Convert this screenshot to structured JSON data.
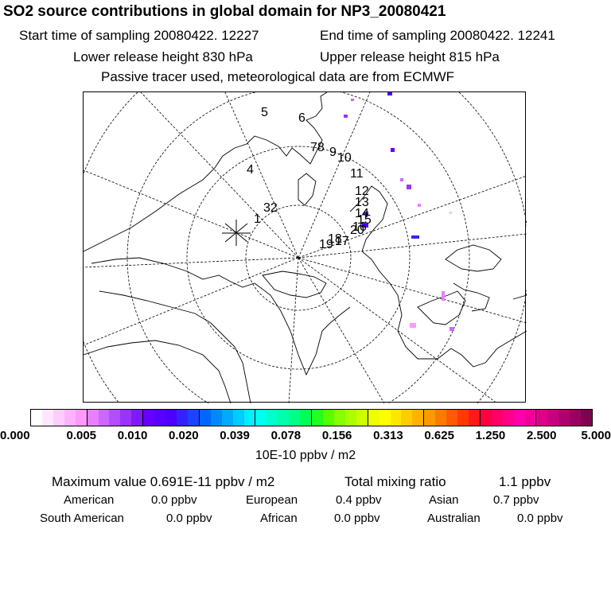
{
  "header": {
    "title": "SO2 source contributions in global domain for NP3_20080421",
    "start_time": "Start time of sampling 20080422. 12227",
    "end_time": "End time of sampling 20080422. 12241",
    "lower_height": "Lower release height  830 hPa",
    "upper_height": "Upper release height  815 hPa",
    "note": "Passive tracer used, meteorological data are from ECMWF"
  },
  "map": {
    "trajectory_labels": [
      "1",
      "32",
      "4",
      "5",
      "6",
      "78",
      "9",
      "10",
      "11",
      "12",
      "13",
      "14",
      "15",
      "16",
      "17",
      "18",
      "19",
      "20"
    ]
  },
  "colorbar": {
    "colors": [
      "#ffffff",
      "#ffe6ff",
      "#ffccff",
      "#ffb3ff",
      "#ff99ff",
      "#e680ff",
      "#cc66ff",
      "#b34dff",
      "#9933ff",
      "#7f1aff",
      "#6600ff",
      "#5a00ff",
      "#4d00ff",
      "#3322ff",
      "#1a44ff",
      "#0066ff",
      "#0088ff",
      "#00aaff",
      "#00ccff",
      "#00eeff",
      "#00ffee",
      "#00ffcc",
      "#00ffaa",
      "#00ff88",
      "#00ff55",
      "#22ff22",
      "#55ff00",
      "#88ff00",
      "#aaff00",
      "#ccff00",
      "#eeff00",
      "#ffff00",
      "#ffe600",
      "#ffcc00",
      "#ffb300",
      "#ff9900",
      "#ff7a00",
      "#ff5a00",
      "#ff3a00",
      "#ff1a1a",
      "#ff0040",
      "#ff0066",
      "#ff0088",
      "#ff00aa",
      "#ee0099",
      "#dd0088",
      "#c80080",
      "#b00070",
      "#980060",
      "#800050"
    ],
    "tick_labels": [
      "0.000",
      "0.005",
      "0.010",
      "0.020",
      "0.039",
      "0.078",
      "0.156",
      "0.313",
      "0.625",
      "1.250",
      "2.500",
      "5.000"
    ],
    "unit": "10E-10 ppbv / m2"
  },
  "stats": {
    "max_value": "Maximum value  0.691E-11 ppbv / m2",
    "total": "Total mixing ratio",
    "total_value": "1.1 ppbv",
    "regions": [
      {
        "name": "American",
        "value": "0.0 ppbv"
      },
      {
        "name": "European",
        "value": "0.4 ppbv"
      },
      {
        "name": "Asian",
        "value": "0.7 ppbv"
      },
      {
        "name": "South American",
        "value": "0.0 ppbv"
      },
      {
        "name": "African",
        "value": "0.0 ppbv"
      },
      {
        "name": "Australian",
        "value": "0.0 ppbv"
      }
    ]
  }
}
